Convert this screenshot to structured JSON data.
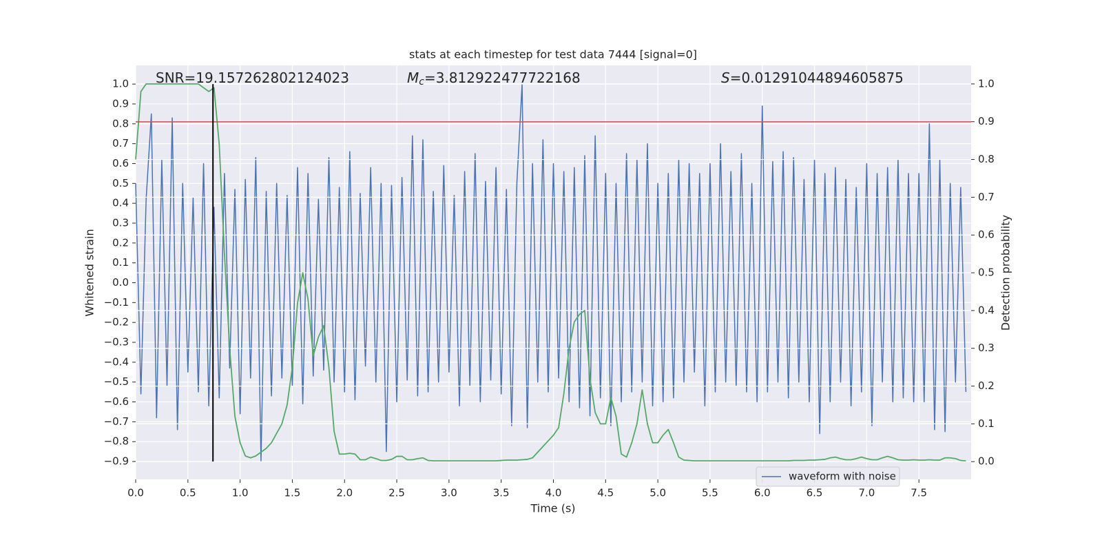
{
  "chart_data": {
    "type": "line",
    "title": "stats at each timestep for test data 7444 [signal=0]",
    "xlabel": "Time (s)",
    "ylabel": "Whitened strain",
    "y2label": "Detection probability",
    "annotations": [
      {
        "text": "SNR=19.157262802124023"
      },
      {
        "symbol": "M",
        "subscript": "c",
        "text": "=3.812922477722168"
      },
      {
        "symbol": "S",
        "text": "=0.01291044894605875"
      }
    ],
    "grid": true,
    "legend": "lower right",
    "hlines": [
      {
        "y": 0.81,
        "color": "#c44e52"
      }
    ],
    "vlines": [
      {
        "x": 0.74,
        "ymin": -0.9,
        "ymax": 1.0,
        "color": "#000000"
      }
    ],
    "xlim": [
      0,
      8
    ],
    "ylim": [
      -0.99,
      1.094
    ],
    "y2lim": [
      -0.047,
      1.049
    ],
    "xticks": [
      {
        "value": 0,
        "label": "0.0"
      },
      {
        "value": 0.5,
        "label": "0.5"
      },
      {
        "value": 1,
        "label": "1.0"
      },
      {
        "value": 1.5,
        "label": "1.5"
      },
      {
        "value": 2,
        "label": "2.0"
      },
      {
        "value": 2.5,
        "label": "2.5"
      },
      {
        "value": 3,
        "label": "3.0"
      },
      {
        "value": 3.5,
        "label": "3.5"
      },
      {
        "value": 4,
        "label": "4.0"
      },
      {
        "value": 4.5,
        "label": "4.5"
      },
      {
        "value": 5,
        "label": "5.0"
      },
      {
        "value": 5.5,
        "label": "5.5"
      },
      {
        "value": 6,
        "label": "6.0"
      },
      {
        "value": 6.5,
        "label": "6.5"
      },
      {
        "value": 7,
        "label": "7.0"
      },
      {
        "value": 7.5,
        "label": "7.5"
      }
    ],
    "yticks": [
      {
        "value": -0.9,
        "label": "−0.9"
      },
      {
        "value": -0.8,
        "label": "−0.8"
      },
      {
        "value": -0.7,
        "label": "−0.7"
      },
      {
        "value": -0.6,
        "label": "−0.6"
      },
      {
        "value": -0.5,
        "label": "−0.5"
      },
      {
        "value": -0.4,
        "label": "−0.4"
      },
      {
        "value": -0.3,
        "label": "−0.3"
      },
      {
        "value": -0.2,
        "label": "−0.2"
      },
      {
        "value": -0.1,
        "label": "−0.1"
      },
      {
        "value": 0,
        "label": "0.0"
      },
      {
        "value": 0.1,
        "label": "0.1"
      },
      {
        "value": 0.2,
        "label": "0.2"
      },
      {
        "value": 0.3,
        "label": "0.3"
      },
      {
        "value": 0.4,
        "label": "0.4"
      },
      {
        "value": 0.5,
        "label": "0.5"
      },
      {
        "value": 0.6,
        "label": "0.6"
      },
      {
        "value": 0.7,
        "label": "0.7"
      },
      {
        "value": 0.8,
        "label": "0.8"
      },
      {
        "value": 0.9,
        "label": "0.9"
      },
      {
        "value": 1,
        "label": "1.0"
      }
    ],
    "y2ticks": [
      {
        "value": 0,
        "label": "0.0"
      },
      {
        "value": 0.1,
        "label": "0.1"
      },
      {
        "value": 0.2,
        "label": "0.2"
      },
      {
        "value": 0.3,
        "label": "0.3"
      },
      {
        "value": 0.4,
        "label": "0.4"
      },
      {
        "value": 0.5,
        "label": "0.5"
      },
      {
        "value": 0.6,
        "label": "0.6"
      },
      {
        "value": 0.7,
        "label": "0.7"
      },
      {
        "value": 0.8,
        "label": "0.8"
      },
      {
        "value": 0.9,
        "label": "0.9"
      },
      {
        "value": 1,
        "label": "1.0"
      }
    ],
    "x": [
      0,
      0.05,
      0.1,
      0.15,
      0.2,
      0.25,
      0.3,
      0.35,
      0.4,
      0.45,
      0.5,
      0.55,
      0.6,
      0.65,
      0.7,
      0.75,
      0.8,
      0.85,
      0.9,
      0.95,
      1,
      1.05,
      1.1,
      1.15,
      1.2,
      1.25,
      1.3,
      1.35,
      1.4,
      1.45,
      1.5,
      1.55,
      1.6,
      1.65,
      1.7,
      1.75,
      1.8,
      1.85,
      1.9,
      1.95,
      2,
      2.05,
      2.1,
      2.15,
      2.2,
      2.25,
      2.3,
      2.35,
      2.4,
      2.45,
      2.5,
      2.55,
      2.6,
      2.65,
      2.7,
      2.75,
      2.8,
      2.85,
      2.9,
      2.95,
      3,
      3.05,
      3.1,
      3.15,
      3.2,
      3.25,
      3.3,
      3.35,
      3.4,
      3.45,
      3.5,
      3.55,
      3.6,
      3.65,
      3.7,
      3.75,
      3.8,
      3.85,
      3.9,
      3.95,
      4,
      4.05,
      4.1,
      4.15,
      4.2,
      4.25,
      4.3,
      4.35,
      4.4,
      4.45,
      4.5,
      4.55,
      4.6,
      4.65,
      4.7,
      4.75,
      4.8,
      4.85,
      4.9,
      4.95,
      5,
      5.05,
      5.1,
      5.15,
      5.2,
      5.25,
      5.3,
      5.35,
      5.4,
      5.45,
      5.5,
      5.55,
      5.6,
      5.65,
      5.7,
      5.75,
      5.8,
      5.85,
      5.9,
      5.95,
      6,
      6.05,
      6.1,
      6.15,
      6.2,
      6.25,
      6.3,
      6.35,
      6.4,
      6.45,
      6.5,
      6.55,
      6.6,
      6.65,
      6.7,
      6.75,
      6.8,
      6.85,
      6.9,
      6.95,
      7,
      7.05,
      7.1,
      7.15,
      7.2,
      7.25,
      7.3,
      7.35,
      7.4,
      7.45,
      7.5,
      7.55,
      7.6,
      7.65,
      7.7,
      7.75,
      7.8,
      7.85,
      7.9,
      7.95
    ],
    "series": [
      {
        "name": "waveform with noise",
        "color": "#4c72b0",
        "values": [
          0.5,
          -0.56,
          0.42,
          0.85,
          -0.68,
          0.62,
          -0.52,
          0.83,
          -0.74,
          0.5,
          -0.45,
          0.43,
          -0.55,
          0.6,
          -0.62,
          0.38,
          -0.58,
          0.55,
          -0.43,
          0.47,
          -0.66,
          0.52,
          -0.48,
          0.63,
          -0.9,
          0.46,
          -0.57,
          0.5,
          -0.48,
          0.44,
          -0.52,
          0.58,
          -0.61,
          0.55,
          -0.47,
          0.42,
          -0.44,
          0.63,
          -0.5,
          0.48,
          -0.55,
          0.66,
          -0.59,
          0.45,
          -0.42,
          0.58,
          -0.5,
          0.5,
          -0.85,
          0.49,
          -0.6,
          0.53,
          -0.49,
          0.74,
          -0.57,
          0.72,
          -0.55,
          0.46,
          -0.5,
          0.59,
          -0.45,
          0.44,
          -0.62,
          0.56,
          -0.52,
          0.65,
          -0.6,
          0.51,
          -0.49,
          0.58,
          -0.56,
          0.47,
          -0.72,
          0.5,
          1.0,
          -0.73,
          0.6,
          -0.5,
          0.72,
          -0.55,
          0.6,
          -0.48,
          0.56,
          -0.6,
          0.58,
          -0.63,
          0.64,
          -0.67,
          0.74,
          -0.58,
          0.55,
          -0.72,
          0.5,
          -0.6,
          0.65,
          -0.55,
          0.62,
          -0.5,
          0.7,
          -0.62,
          0.5,
          -0.6,
          0.55,
          -0.58,
          0.62,
          -0.5,
          0.6,
          -0.45,
          0.55,
          -0.62,
          0.6,
          -0.55,
          0.7,
          -0.5,
          0.56,
          -0.52,
          0.65,
          -0.55,
          0.5,
          -0.6,
          0.89,
          -0.55,
          0.61,
          -0.5,
          0.66,
          -0.58,
          0.63,
          -0.5,
          0.52,
          -0.6,
          0.62,
          -0.76,
          0.55,
          -0.6,
          0.58,
          -0.5,
          0.52,
          -0.62,
          0.48,
          -0.55,
          0.6,
          -0.72,
          0.55,
          -0.5,
          0.58,
          -0.6,
          0.62,
          -0.58,
          0.55,
          -0.6,
          0.55,
          -0.6,
          0.8,
          -0.74,
          0.62,
          -0.75,
          0.5,
          -0.5,
          0.48,
          -0.55
        ]
      },
      {
        "color": "#55a868",
        "axis": "y2",
        "values": [
          0.8,
          0.98,
          1.0,
          1.0,
          1.0,
          1.0,
          1.0,
          1.0,
          1.0,
          1.0,
          1.0,
          1.0,
          1.0,
          0.99,
          0.98,
          0.99,
          0.84,
          0.55,
          0.3,
          0.12,
          0.05,
          0.015,
          0.01,
          0.015,
          0.025,
          0.035,
          0.05,
          0.075,
          0.1,
          0.15,
          0.25,
          0.42,
          0.5,
          0.43,
          0.28,
          0.33,
          0.36,
          0.25,
          0.08,
          0.02,
          0.02,
          0.022,
          0.02,
          0.005,
          0.005,
          0.012,
          0.008,
          0.003,
          0.003,
          0.006,
          0.014,
          0.014,
          0.005,
          0.005,
          0.008,
          0.01,
          0.003,
          0.002,
          0.002,
          0.002,
          0.002,
          0.002,
          0.002,
          0.002,
          0.002,
          0.002,
          0.002,
          0.002,
          0.002,
          0.002,
          0.003,
          0.004,
          0.004,
          0.004,
          0.005,
          0.006,
          0.01,
          0.025,
          0.04,
          0.055,
          0.07,
          0.09,
          0.18,
          0.3,
          0.37,
          0.39,
          0.4,
          0.22,
          0.13,
          0.1,
          0.1,
          0.17,
          0.12,
          0.02,
          0.012,
          0.05,
          0.1,
          0.19,
          0.1,
          0.05,
          0.05,
          0.07,
          0.085,
          0.05,
          0.012,
          0.004,
          0.003,
          0.002,
          0.002,
          0.002,
          0.002,
          0.002,
          0.002,
          0.002,
          0.002,
          0.002,
          0.002,
          0.002,
          0.002,
          0.002,
          0.002,
          0.002,
          0.002,
          0.002,
          0.002,
          0.002,
          0.003,
          0.003,
          0.003,
          0.004,
          0.004,
          0.005,
          0.006,
          0.01,
          0.012,
          0.008,
          0.005,
          0.005,
          0.008,
          0.012,
          0.008,
          0.005,
          0.005,
          0.01,
          0.014,
          0.01,
          0.005,
          0.004,
          0.004,
          0.005,
          0.004,
          0.004,
          0.005,
          0.004,
          0.004,
          0.01,
          0.01,
          0.008,
          0.003,
          0.002
        ]
      }
    ]
  }
}
